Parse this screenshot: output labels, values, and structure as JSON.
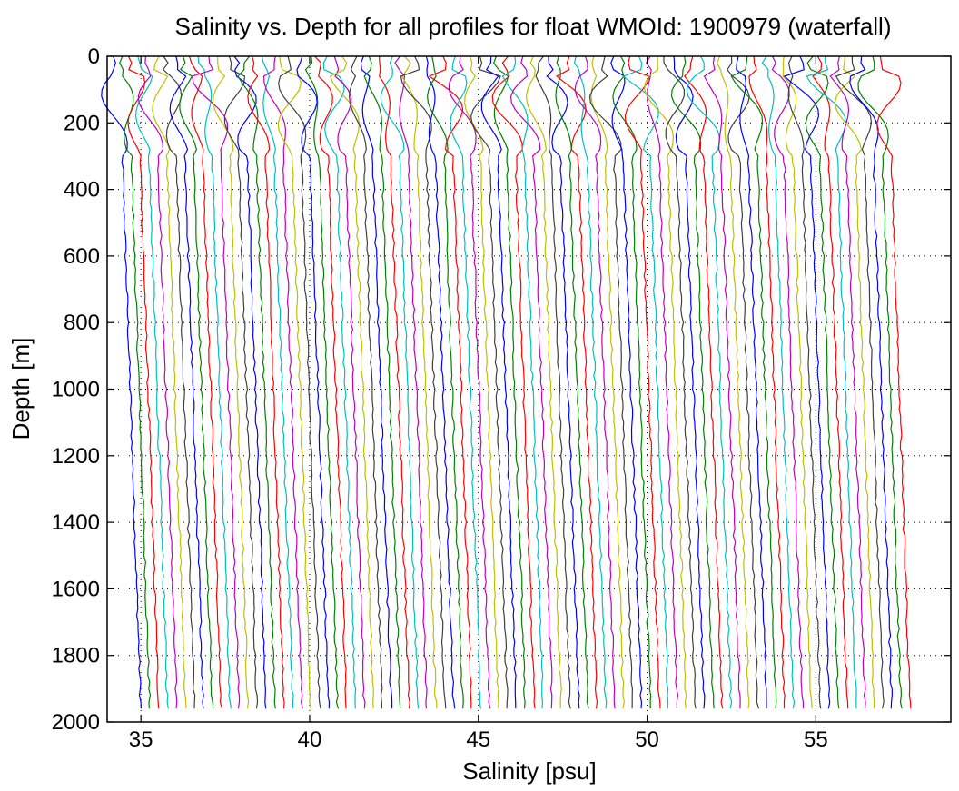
{
  "chart_data": {
    "type": "line",
    "title": "Salinity vs. Depth for all profiles for float WMOId: 1900979 (waterfall)",
    "xlabel": "Salinity [psu]",
    "ylabel": "Depth [m]",
    "xlim": [
      34,
      59
    ],
    "ylim": [
      0,
      2000
    ],
    "y_reversed": true,
    "grid": "dotted",
    "x_ticks": [
      35,
      40,
      45,
      50,
      55
    ],
    "y_ticks": [
      0,
      200,
      400,
      600,
      800,
      1000,
      1200,
      1400,
      1600,
      1800,
      2000
    ],
    "waterfall": {
      "profile_count": 87,
      "offset_per_profile": 0.265,
      "first_profile_surface_salinity": 34.15,
      "first_profile_bottom_salinity": 35.0,
      "deepest_depth": 1970
    },
    "series_colors": [
      "#0000ff",
      "#008000",
      "#ff0000",
      "#00bfbf",
      "#bf00bf",
      "#bfbf00",
      "#404040"
    ]
  }
}
